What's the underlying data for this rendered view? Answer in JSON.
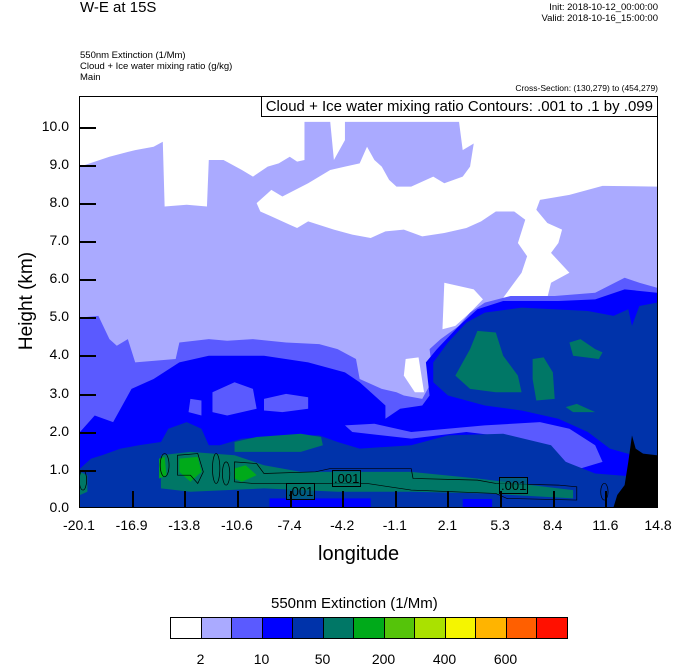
{
  "header": {
    "title": "W-E at 15S",
    "init": "Init: 2018-10-12_00:00:00",
    "valid": "Valid: 2018-10-16_15:00:00",
    "fields": [
      "550nm Extinction   (1/Mm)",
      "Cloud + Ice water mixing ratio   (g/kg)",
      "Main"
    ],
    "cross_section": "Cross-Section: (130,279) to (454,279)"
  },
  "chart_data": {
    "type": "heatmap",
    "subtype": "filled contour cross-section with line contours",
    "contour_info": "Cloud + Ice water mixing ratio Contours: .001 to .1 by .099",
    "xlabel": "longitude",
    "ylabel": "Height (km)",
    "xlim": [
      -20.1,
      14.8
    ],
    "ylim": [
      0,
      10.8
    ],
    "x_ticks": [
      "-20.1",
      "-16.9",
      "-13.8",
      "-10.6",
      "-7.4",
      "-4.2",
      "-1.1",
      "2.1",
      "5.3",
      "8.4",
      "11.6",
      "14.8"
    ],
    "y_ticks": [
      "0.0",
      "1.0",
      "2.0",
      "3.0",
      "4.0",
      "5.0",
      "6.0",
      "7.0",
      "8.0",
      "9.0",
      "10.0"
    ],
    "contour_labels": [
      ".001",
      ".001",
      ".001"
    ],
    "colorbar": {
      "title": "550nm Extinction  (1/Mm)",
      "colors": [
        "#ffffff",
        "#aaaaff",
        "#5a5aff",
        "#0000ff",
        "#0033aa",
        "#007766",
        "#00aa1a",
        "#55c40a",
        "#aae100",
        "#f5f500",
        "#ffb400",
        "#ff5f00",
        "#ff1000"
      ],
      "labels": [
        "2",
        "10",
        "50",
        "200",
        "400",
        "600"
      ]
    },
    "terrain_color": "#000000"
  }
}
